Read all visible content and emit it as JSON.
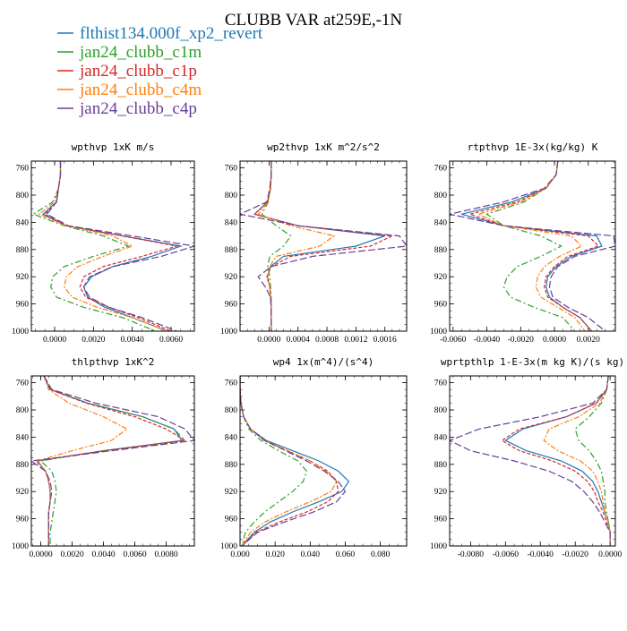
{
  "chart_data": {
    "type": "line",
    "title": "CLUBB VAR at259E,-1N",
    "legend_placement": "top-left",
    "y_axis": {
      "ylim": [
        1000,
        750
      ],
      "ticks": [
        760,
        800,
        840,
        880,
        920,
        960,
        1000
      ]
    },
    "series_names": [
      "flthist134.000f_xp2_revert",
      "jan24_clubb_c1m",
      "jan24_clubb_c1p",
      "jan24_clubb_c4m",
      "jan24_clubb_c4p"
    ],
    "series_colors": [
      "#1f77b4",
      "#2ca02c",
      "#d62728",
      "#ff7f0e",
      "#6a3d9a"
    ],
    "series_dash": [
      "",
      "7,3,2,3",
      "4,2",
      "6,2,2,2",
      "8,3"
    ],
    "levels": [
      750,
      770,
      790,
      810,
      828,
      845,
      860,
      875,
      890,
      905,
      920,
      935,
      950,
      965,
      980,
      1000
    ],
    "panels": [
      {
        "title": "wpthvp  1xK m/s",
        "xlim": [
          -0.0012,
          0.0072
        ],
        "xticks": [
          0.0,
          0.002,
          0.004,
          0.006
        ],
        "xtick_labels": [
          "0.0000",
          "0.0020",
          "0.0040",
          "0.0060"
        ],
        "series": [
          [
            0.0003,
            0.0003,
            0.0002,
            0.0001,
            -0.0006,
            0.0006,
            0.0035,
            0.0065,
            0.005,
            0.003,
            0.0019,
            0.0015,
            0.0017,
            0.0026,
            0.004,
            0.0058
          ],
          [
            0.0003,
            0.0003,
            0.0002,
            -0.0001,
            -0.0011,
            0.0005,
            0.0025,
            0.0038,
            0.002,
            0.0005,
            -0.0001,
            -0.0002,
            0.0001,
            0.0015,
            0.0035,
            0.0052
          ],
          [
            0.0003,
            0.0003,
            0.0002,
            0.0001,
            -0.0005,
            0.0006,
            0.0035,
            0.0063,
            0.0045,
            0.0025,
            0.0015,
            0.0013,
            0.0016,
            0.0028,
            0.0043,
            0.006
          ],
          [
            0.0003,
            0.0003,
            0.0002,
            0.0,
            -0.0008,
            0.0006,
            0.003,
            0.004,
            0.0025,
            0.0012,
            0.0006,
            0.0005,
            0.0009,
            0.0022,
            0.004,
            0.0058
          ],
          [
            0.0003,
            0.0003,
            0.0002,
            0.0001,
            -0.0004,
            0.0007,
            0.004,
            0.0072,
            0.0055,
            0.003,
            0.0018,
            0.0015,
            0.0018,
            0.0028,
            0.0045,
            0.0063
          ]
        ]
      },
      {
        "title": "wp2thvp  1xK m^2/s^2",
        "xlim": [
          -0.0004,
          0.0019
        ],
        "xticks": [
          0.0,
          0.0004,
          0.0008,
          0.0012,
          0.0016
        ],
        "xtick_labels": [
          "0.0000",
          "0.0004",
          "0.0008",
          "0.0012",
          "0.0016"
        ],
        "series": [
          [
            3e-05,
            3e-05,
            2e-05,
            -2e-05,
            -0.0002,
            0.0004,
            0.0016,
            0.0012,
            0.0002,
            2e-05,
            -2e-05,
            1e-05,
            2e-05,
            3e-05,
            3e-05,
            3e-05
          ],
          [
            3e-05,
            3e-05,
            2e-05,
            -1e-05,
            -0.0001,
            0.0001,
            0.0003,
            0.0002,
            1e-05,
            -2e-05,
            1e-05,
            2e-05,
            3e-05,
            3e-05,
            3e-05,
            3e-05
          ],
          [
            3e-05,
            3e-05,
            2e-05,
            -2e-05,
            -0.0002,
            0.0004,
            0.0017,
            0.0014,
            0.0003,
            3e-05,
            -3e-05,
            1e-05,
            2e-05,
            3e-05,
            3e-05,
            3e-05
          ],
          [
            3e-05,
            3e-05,
            2e-05,
            -1e-05,
            -0.00015,
            0.0003,
            0.0009,
            0.0007,
            0.0001,
            1e-05,
            -2e-05,
            1e-05,
            2e-05,
            3e-05,
            3e-05,
            3e-05
          ],
          [
            3e-05,
            3e-05,
            1e-05,
            -3e-05,
            -0.0004,
            0.0004,
            0.0018,
            0.0019,
            0.0006,
            3e-05,
            -0.00015,
            -5e-05,
            2e-05,
            3e-05,
            3e-05,
            3e-05
          ]
        ]
      },
      {
        "title": "rtpthvp  1E-3x(kg/kg) K",
        "xlim": [
          -0.0062,
          0.0036
        ],
        "xticks": [
          -0.006,
          -0.004,
          -0.002,
          0.0,
          0.002
        ],
        "xtick_labels": [
          "-0.0060",
          "-0.0040",
          "-0.0020",
          "0.0000",
          "0.0020"
        ],
        "series": [
          [
            0.0002,
            0.0001,
            -0.0005,
            -0.0025,
            -0.0055,
            -0.003,
            0.0025,
            0.0028,
            0.001,
            0.0001,
            -0.0004,
            -0.0005,
            -0.0003,
            0.0005,
            0.0015,
            0.0022
          ],
          [
            0.0002,
            0.0001,
            -0.0005,
            -0.0018,
            -0.004,
            -0.003,
            -0.0008,
            0.0004,
            -0.0008,
            -0.0022,
            -0.0028,
            -0.003,
            -0.0026,
            -0.0012,
            0.0005,
            0.0012
          ],
          [
            0.0002,
            0.0001,
            -0.0005,
            -0.0022,
            -0.005,
            -0.003,
            0.002,
            0.0026,
            0.0008,
            0.0,
            -0.0005,
            -0.0006,
            -0.0004,
            0.0005,
            0.0015,
            0.0022
          ],
          [
            0.0002,
            0.0001,
            -0.0005,
            -0.002,
            -0.0045,
            -0.003,
            0.001,
            0.0016,
            0.0003,
            -0.0006,
            -0.001,
            -0.0011,
            -0.0008,
            0.0002,
            0.0012,
            0.0018
          ],
          [
            0.0002,
            0.0001,
            -0.0006,
            -0.003,
            -0.0062,
            -0.003,
            0.0035,
            0.0036,
            0.0012,
            0.0002,
            -0.0002,
            -0.0003,
            -0.0001,
            0.0008,
            0.002,
            0.003
          ]
        ]
      },
      {
        "title": "thlpthvp  1xK^2",
        "xlim": [
          -0.0006,
          0.0098
        ],
        "xticks": [
          0.0,
          0.002,
          0.004,
          0.006,
          0.008
        ],
        "xtick_labels": [
          "0.0000",
          "0.0020",
          "0.0040",
          "0.0060",
          "0.0080"
        ],
        "series": [
          [
            0.0002,
            0.0006,
            0.003,
            0.0065,
            0.0085,
            0.009,
            0.004,
            -0.0002,
            0.0003,
            0.0005,
            0.0006,
            0.0006,
            0.0005,
            0.0005,
            0.0005,
            0.0005
          ],
          [
            0.0002,
            0.0006,
            0.003,
            0.0065,
            0.0085,
            0.0092,
            0.004,
            0.0,
            0.0007,
            0.0009,
            0.001,
            0.0009,
            0.0008,
            0.0007,
            0.0006,
            0.0006
          ],
          [
            0.0002,
            0.0006,
            0.0029,
            0.006,
            0.008,
            0.0092,
            0.004,
            -0.0003,
            0.0003,
            0.0005,
            0.0006,
            0.0006,
            0.0005,
            0.0005,
            0.0005,
            0.0005
          ],
          [
            0.0002,
            0.0005,
            0.0018,
            0.004,
            0.0055,
            0.0045,
            0.002,
            -0.0002,
            0.0003,
            0.0005,
            0.0006,
            0.0006,
            0.0005,
            0.0005,
            0.0005,
            0.0005
          ],
          [
            0.0002,
            0.0007,
            0.0035,
            0.0075,
            0.0092,
            0.0098,
            0.0045,
            -0.0006,
            0.0003,
            0.0006,
            0.0007,
            0.0006,
            0.0005,
            0.0005,
            0.0005,
            0.0005
          ]
        ]
      },
      {
        "title": "wp4  1x(m^4)/(s^4)",
        "xlim": [
          0.0,
          0.095
        ],
        "xticks": [
          0.0,
          0.02,
          0.04,
          0.06,
          0.08
        ],
        "xtick_labels": [
          "0.000",
          "0.020",
          "0.040",
          "0.060",
          "0.080"
        ],
        "series": [
          [
            0.0,
            0.0,
            0.0005,
            0.002,
            0.006,
            0.015,
            0.03,
            0.045,
            0.056,
            0.062,
            0.058,
            0.045,
            0.03,
            0.017,
            0.008,
            0.001
          ],
          [
            0.0,
            0.0,
            0.0005,
            0.002,
            0.005,
            0.012,
            0.022,
            0.033,
            0.038,
            0.036,
            0.03,
            0.022,
            0.014,
            0.008,
            0.003,
            0.001
          ],
          [
            0.0,
            0.0,
            0.0005,
            0.002,
            0.006,
            0.014,
            0.027,
            0.04,
            0.05,
            0.055,
            0.056,
            0.05,
            0.038,
            0.022,
            0.009,
            0.001
          ],
          [
            0.0,
            0.0,
            0.0005,
            0.002,
            0.006,
            0.014,
            0.027,
            0.04,
            0.049,
            0.055,
            0.052,
            0.04,
            0.026,
            0.014,
            0.006,
            0.001
          ],
          [
            0.0,
            0.0,
            0.0005,
            0.002,
            0.006,
            0.014,
            0.026,
            0.038,
            0.048,
            0.056,
            0.06,
            0.055,
            0.042,
            0.025,
            0.01,
            0.001
          ]
        ]
      },
      {
        "title": "wprtpthlp  1-E-3x(m kg K)/(s kg)",
        "xlim": [
          -0.0092,
          0.0003
        ],
        "xticks": [
          -0.008,
          -0.006,
          -0.004,
          -0.002,
          0.0
        ],
        "xtick_labels": [
          "-0.0080",
          "-0.0060",
          "-0.0040",
          "-0.0020",
          "0.0000"
        ],
        "series": [
          [
            -0.0001,
            -0.0002,
            -0.0008,
            -0.0025,
            -0.005,
            -0.006,
            -0.0048,
            -0.0028,
            -0.0016,
            -0.001,
            -0.0007,
            -0.0005,
            -0.0003,
            -0.0001,
            0.0,
            0.0
          ],
          [
            -0.0001,
            -0.0002,
            -0.0005,
            -0.0012,
            -0.002,
            -0.0018,
            -0.0012,
            -0.0008,
            -0.0005,
            -0.0004,
            -0.0003,
            -0.0003,
            -0.0002,
            -0.0001,
            0.0,
            0.0
          ],
          [
            -0.0001,
            -0.0002,
            -0.0008,
            -0.0025,
            -0.0052,
            -0.0062,
            -0.0052,
            -0.0033,
            -0.002,
            -0.0013,
            -0.0009,
            -0.0007,
            -0.0004,
            -0.0002,
            0.0,
            0.0
          ],
          [
            -0.0001,
            -0.0002,
            -0.0006,
            -0.0018,
            -0.0035,
            -0.0038,
            -0.003,
            -0.0017,
            -0.001,
            -0.0007,
            -0.0005,
            -0.0004,
            -0.0003,
            -0.0001,
            0.0,
            0.0
          ],
          [
            -0.0001,
            -0.0002,
            -0.001,
            -0.004,
            -0.0075,
            -0.0092,
            -0.008,
            -0.0055,
            -0.0035,
            -0.0022,
            -0.0015,
            -0.001,
            -0.0006,
            -0.0003,
            0.0,
            0.0
          ]
        ]
      }
    ]
  }
}
